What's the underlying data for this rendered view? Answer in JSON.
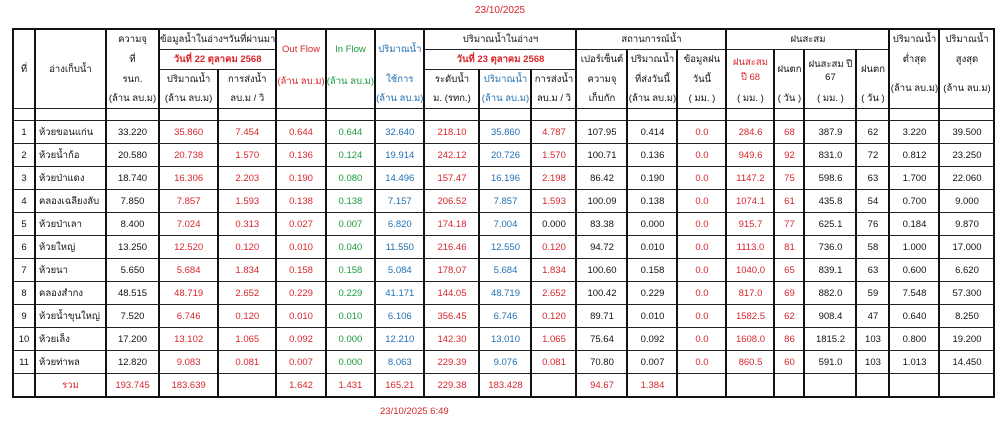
{
  "report_date": "23/10/2025",
  "timestamp": "23/10/2025 6:49",
  "colors": {
    "red": "#d8262c",
    "green": "#1a9c3c",
    "blue": "#1f6fb5",
    "black": "#111111"
  },
  "headers": {
    "no": "ที่",
    "reservoir": "อ่างเก็บน้ำ",
    "capacity": [
      "ความจุ",
      "ที่",
      "รนก.",
      "(ล้าน ลบ.ม)"
    ],
    "prev_group": "ข้อมูลน้ำในอ่างฯวันที่ผ่านมา",
    "prev_date": "วันที่ 22 ตุลาคม 2568",
    "prev_volume": [
      "ปริมาณน้ำ",
      "(ล้าน ลบ.ม)"
    ],
    "prev_release": [
      "การส่งน้ำ",
      "ลบ.ม / วิ"
    ],
    "out_flow": [
      "Out Flow",
      "(ล้าน ลบ.ม)"
    ],
    "in_flow": [
      "In Flow",
      "(ล้าน ลบ.ม)"
    ],
    "usable": [
      "ปริมาณน้ำ",
      "ใช้การ",
      "(ล้าน ลบ.ม)"
    ],
    "curr_group": "ปริมาณน้ำในอ่างฯ",
    "curr_date": "วันที่ 23 ตุลาคม 2568",
    "level": [
      "ระดับน้ำ",
      "ม. (รทก.)"
    ],
    "curr_volume": [
      "ปริมาณน้ำ",
      "(ล้าน ลบ.ม)"
    ],
    "curr_release": [
      "การส่งน้ำ",
      "ลบ.ม / วิ"
    ],
    "status_group": "สถานการณ์น้ำ",
    "percent": [
      "เปอร์เซ็นต์",
      "ความจุ",
      "เก็บกัก"
    ],
    "released_today": [
      "ปริมาณน้ำ",
      "ที่ส่งวันนี้",
      "(ล้าน ลบ.ม)"
    ],
    "rain_today": [
      "ข้อมูลฝน",
      "วันนี้",
      "( มม. )"
    ],
    "rain_group": "ฝนสะสม",
    "rain68": [
      "ฝนสะสม",
      "ปี 68",
      "( มม. )"
    ],
    "rain68_days": [
      "ฝนตก",
      "( วัน )"
    ],
    "rain67": [
      "ฝนสะสม ปี",
      "67",
      "( มม. )"
    ],
    "rain67_days": [
      "ฝนตก",
      "( วัน )"
    ],
    "min_volume": [
      "ปริมาณน้ำ",
      "ต่ำสุด",
      "(ล้าน ลบ.ม)"
    ],
    "max_volume": [
      "ปริมาณน้ำ",
      "สูงสุด",
      "(ล้าน ลบ.ม)"
    ]
  },
  "rows": [
    {
      "no": "1",
      "name": "ห้วยขอนแก่น",
      "cap": "33.220",
      "pvol": "35.860",
      "prel": "7.454",
      "out": "0.644",
      "in": "0.644",
      "use": "32.640",
      "lvl": "218.10",
      "cvol": "35.860",
      "crel": "4.787",
      "pct": "107.95",
      "rel_today": "0.414",
      "rain": "0.0",
      "r68": "284.6",
      "d68": "68",
      "r67": "387.9",
      "d67": "62",
      "min": "3.220",
      "max": "39.500"
    },
    {
      "no": "2",
      "name": "ห้วยน้ำก้อ",
      "cap": "20.580",
      "pvol": "20.738",
      "prel": "1.570",
      "out": "0.136",
      "in": "0.124",
      "use": "19.914",
      "lvl": "242.12",
      "cvol": "20.726",
      "crel": "1.570",
      "pct": "100.71",
      "rel_today": "0.136",
      "rain": "0.0",
      "r68": "949.6",
      "d68": "92",
      "r67": "831.0",
      "d67": "72",
      "min": "0.812",
      "max": "23.250"
    },
    {
      "no": "3",
      "name": "ห้วยป่าแดง",
      "cap": "18.740",
      "pvol": "16.306",
      "prel": "2.203",
      "out": "0.190",
      "in": "0.080",
      "use": "14.496",
      "lvl": "157.47",
      "cvol": "16.196",
      "crel": "2.198",
      "pct": "86.42",
      "rel_today": "0.190",
      "rain": "0.0",
      "r68": "1147.2",
      "d68": "75",
      "r67": "598.6",
      "d67": "63",
      "min": "1.700",
      "max": "22.060"
    },
    {
      "no": "4",
      "name": "คลองเฉลียงลับ",
      "cap": "7.850",
      "pvol": "7.857",
      "prel": "1.593",
      "out": "0.138",
      "in": "0.138",
      "use": "7.157",
      "lvl": "206.52",
      "cvol": "7.857",
      "crel": "1.593",
      "pct": "100.09",
      "rel_today": "0.138",
      "rain": "0.0",
      "r68": "1074.1",
      "d68": "61",
      "r67": "435.8",
      "d67": "54",
      "min": "0.700",
      "max": "9.000"
    },
    {
      "no": "5",
      "name": "ห้วยป่าเลา",
      "cap": "8.400",
      "pvol": "7.024",
      "prel": "0.313",
      "out": "0.027",
      "in": "0.007",
      "use": "6.820",
      "lvl": "174.18",
      "cvol": "7.004",
      "crel": "0.000",
      "pct": "83.38",
      "rel_today": "0.000",
      "rain": "0.0",
      "r68": "915.7",
      "d68": "77",
      "r67": "625.1",
      "d67": "76",
      "min": "0.184",
      "max": "9.870"
    },
    {
      "no": "6",
      "name": "ห้วยใหญ่",
      "cap": "13.250",
      "pvol": "12.520",
      "prel": "0.120",
      "out": "0.010",
      "in": "0.040",
      "use": "11.550",
      "lvl": "216.46",
      "cvol": "12.550",
      "crel": "0.120",
      "pct": "94.72",
      "rel_today": "0.010",
      "rain": "0.0",
      "r68": "1113.0",
      "d68": "81",
      "r67": "736.0",
      "d67": "58",
      "min": "1.000",
      "max": "17.000"
    },
    {
      "no": "7",
      "name": "ห้วยนา",
      "cap": "5.650",
      "pvol": "5.684",
      "prel": "1.834",
      "out": "0.158",
      "in": "0.158",
      "use": "5.084",
      "lvl": "178.07",
      "cvol": "5.684",
      "crel": "1.834",
      "pct": "100.60",
      "rel_today": "0.158",
      "rain": "0.0",
      "r68": "1040.0",
      "d68": "65",
      "r67": "839.1",
      "d67": "63",
      "min": "0.600",
      "max": "6.620"
    },
    {
      "no": "8",
      "name": "คลองสำกง",
      "cap": "48.515",
      "pvol": "48.719",
      "prel": "2.652",
      "out": "0.229",
      "in": "0.229",
      "use": "41.171",
      "lvl": "144.05",
      "cvol": "48.719",
      "crel": "2.652",
      "pct": "100.42",
      "rel_today": "0.229",
      "rain": "0.0",
      "r68": "817.0",
      "d68": "69",
      "r67": "882.0",
      "d67": "59",
      "min": "7.548",
      "max": "57.300"
    },
    {
      "no": "9",
      "name": "ห้วยน้ำขุนใหญ่",
      "cap": "7.520",
      "pvol": "6.746",
      "prel": "0.120",
      "out": "0.010",
      "in": "0.010",
      "use": "6.106",
      "lvl": "356.45",
      "cvol": "6.746",
      "crel": "0.120",
      "pct": "89.71",
      "rel_today": "0.010",
      "rain": "0.0",
      "r68": "1582.5",
      "d68": "62",
      "r67": "908.4",
      "d67": "47",
      "min": "0.640",
      "max": "8.250"
    },
    {
      "no": "10",
      "name": "ห้วยเล็ง",
      "cap": "17.200",
      "pvol": "13.102",
      "prel": "1.065",
      "out": "0.092",
      "in": "0.000",
      "use": "12.210",
      "lvl": "142.30",
      "cvol": "13.010",
      "crel": "1.065",
      "pct": "75.64",
      "rel_today": "0.092",
      "rain": "0.0",
      "r68": "1608.0",
      "d68": "86",
      "r67": "1815.2",
      "d67": "103",
      "min": "0.800",
      "max": "19.200"
    },
    {
      "no": "11",
      "name": "ห้วยท่าพล",
      "cap": "12.820",
      "pvol": "9.083",
      "prel": "0.081",
      "out": "0.007",
      "in": "0.000",
      "use": "8.063",
      "lvl": "229.39",
      "cvol": "9.076",
      "crel": "0.081",
      "pct": "70.80",
      "rel_today": "0.007",
      "rain": "0.0",
      "r68": "860.5",
      "d68": "60",
      "r67": "591.0",
      "d67": "103",
      "min": "1.013",
      "max": "14.450"
    }
  ],
  "totals": {
    "label": "รวม",
    "cap": "193.745",
    "pvol": "183.639",
    "out": "1.642",
    "in": "1.431",
    "use": "165.21",
    "lvl": "229.38",
    "cvol": "183.428",
    "pct": "94.67",
    "rel_today": "1.384"
  }
}
